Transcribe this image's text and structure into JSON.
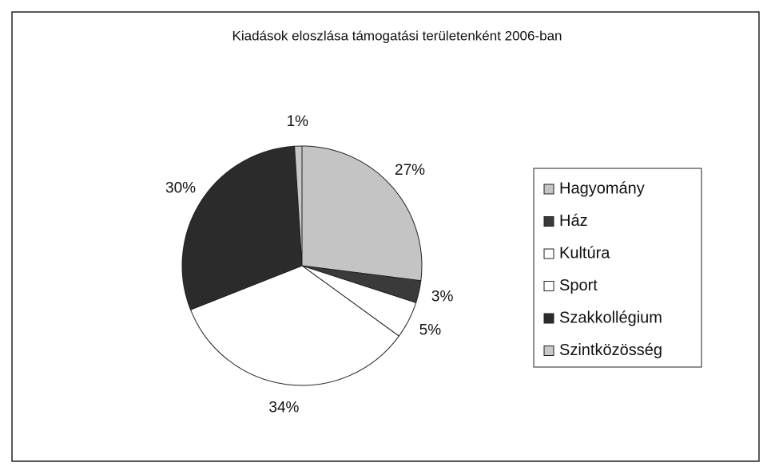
{
  "chart_data": {
    "type": "pie",
    "title": "Kiadások eloszlása támogatási területenként 2006-ban",
    "categories": [
      "Hagyomány",
      "Ház",
      "Kultúra",
      "Sport",
      "Szakkollégium",
      "Szintközösség"
    ],
    "values": [
      27,
      3,
      5,
      34,
      30,
      1
    ],
    "value_labels": [
      "27%",
      "3%",
      "5%",
      "34%",
      "30%",
      "1%"
    ],
    "colors": [
      "#c4c4c4",
      "#3a3a3a",
      "#ffffff",
      "#ffffff",
      "#2b2b2b",
      "#c8c8c8"
    ],
    "legend": "right"
  }
}
